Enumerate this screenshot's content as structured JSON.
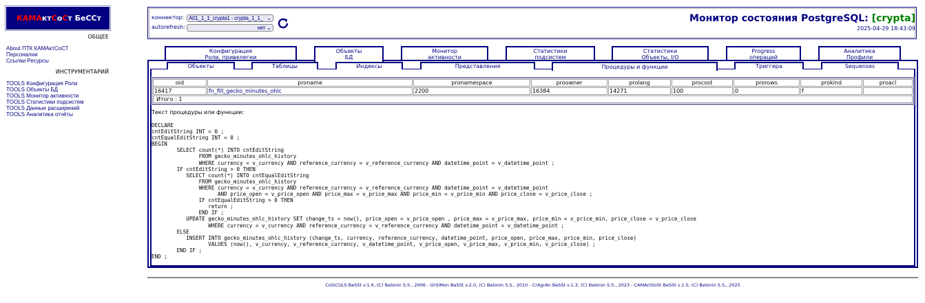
{
  "logo": {
    "part1": "КАМА",
    "part2": "кт",
    "part3": "С",
    "part4": "о",
    "part5": "С",
    "part6": "т БеССт"
  },
  "sidebar": {
    "general_heading": "ОБЩЕЕ",
    "general_links": [
      "About ПТК КАМАктСоСТ",
      "Персоналии",
      "Ссылки Ресурсы"
    ],
    "tools_heading": "ИНСТРУМЕНТАРИЙ",
    "tools_links": [
      "TOOLS Конфигурация Роли",
      "TOOLS Объекты БД",
      "TOOLS Монитор активности",
      "TOOLS Статистики подсистем",
      "TOOLS Данные расширений",
      "TOOLS Аналитика отчёты"
    ]
  },
  "header": {
    "connector_label": "коннектор:",
    "connector_value": "A01_1_1_crypta1 - crypta_1_1_",
    "autorefresh_label": "autorefresh:",
    "autorefresh_value": "нет",
    "refresh_icon": "refresh-icon",
    "title": "Монитор состояния PostgreSQL:",
    "db": "[crypta]",
    "timestamp": "2025-04-29 18:43:09",
    "db_color": "#008000",
    "accent_color": "#000080"
  },
  "tabs": [
    {
      "l1": "Конфигурация",
      "l2": "Роли, привелегии"
    },
    {
      "l1": "Объекты",
      "l2": "БД",
      "active": true
    },
    {
      "l1": "Монитор",
      "l2": "активности"
    },
    {
      "l1": "Статистики",
      "l2": "подсистем"
    },
    {
      "l1": "Статистики",
      "l2": "Объекты, I/O"
    },
    {
      "l1": "Progress",
      "l2": "операций"
    },
    {
      "l1": "Аналитика",
      "l2": "Профили"
    }
  ],
  "subtabs": [
    "Объекты",
    "Таблицы",
    "Индексы",
    "Представления",
    "Процедуры и функции",
    "Триггера",
    "Sequenses"
  ],
  "table": {
    "columns": [
      "oid",
      "proname",
      "pronamespace",
      "proowner",
      "prolang",
      "procost",
      "prorows",
      "prokind",
      "proacl"
    ],
    "rows": [
      [
        "16417",
        "fn_fill_gecko_minutes_ohlc",
        "2200",
        "16384",
        "14271",
        "100",
        "0",
        "f",
        ""
      ]
    ],
    "total": "Итого : 1"
  },
  "code_label": "Текст процедуры или функции:",
  "code": "DECLARE\ncntEditString INT = 0 ;\ncntEqualEditString INT = 0 ;\nBEGIN\n        SELECT count(*) INTO cntEditString\n               FROM gecko_minutes_ohlc_history\n               WHERE currency = v_currency AND reference_currency = v_reference_currency AND datetime_point = v_datetime_point ;\n        IF cntEditString > 0 THEN\n           SELECT count(*) INTO cntEqualEditString\n               FROM gecko_minutes_ohlc_history\n               WHERE currency = v_currency AND reference_currency = v_reference_currency AND datetime_point = v_datetime_point\n                     AND price_open = v_price_open AND price_max = v_price_max AND price_min = v_price_min AND price_close = v_price_close ;\n               IF cntEqualEditString > 0 THEN\n                  return ;\n               END IF ;\n           UPDATE gecko_minutes_ohlc_history SET change_ts = now(), price_open = v_price_open , price_max = v_price_max, price_min = v_price_min, price_close = v_price_close\n                  WHERE currency = v_currency AND reference_currency = v_reference_currency AND datetime_point = v_datetime_point ;\n        ELSE\n           INSERT INTO gecko_minutes_ohlc_history (change_ts, currency, reference_currency, datetime_point, price_open, price_max, price_min, price_close)\n                  VALUES (now(), v_currency, v_reference_currency, v_datetime_point, v_price_open, v_price_max, v_price_min, v_price_close) ;\n        END IF ;\nEND ;",
  "footer": "CoSiCULS BeSSt v.1.6.,(C) Belonin S.S., 2006 - OrSiMon BeSSt v.2.0, (C) Belonin S.S., 2010 - CrAgrAn BeSSt v.1.3, (C) Belonin S.S., 2023 - CAMActSoSt BeSSt v.1.0, (C) Belonin S.S., 2025"
}
